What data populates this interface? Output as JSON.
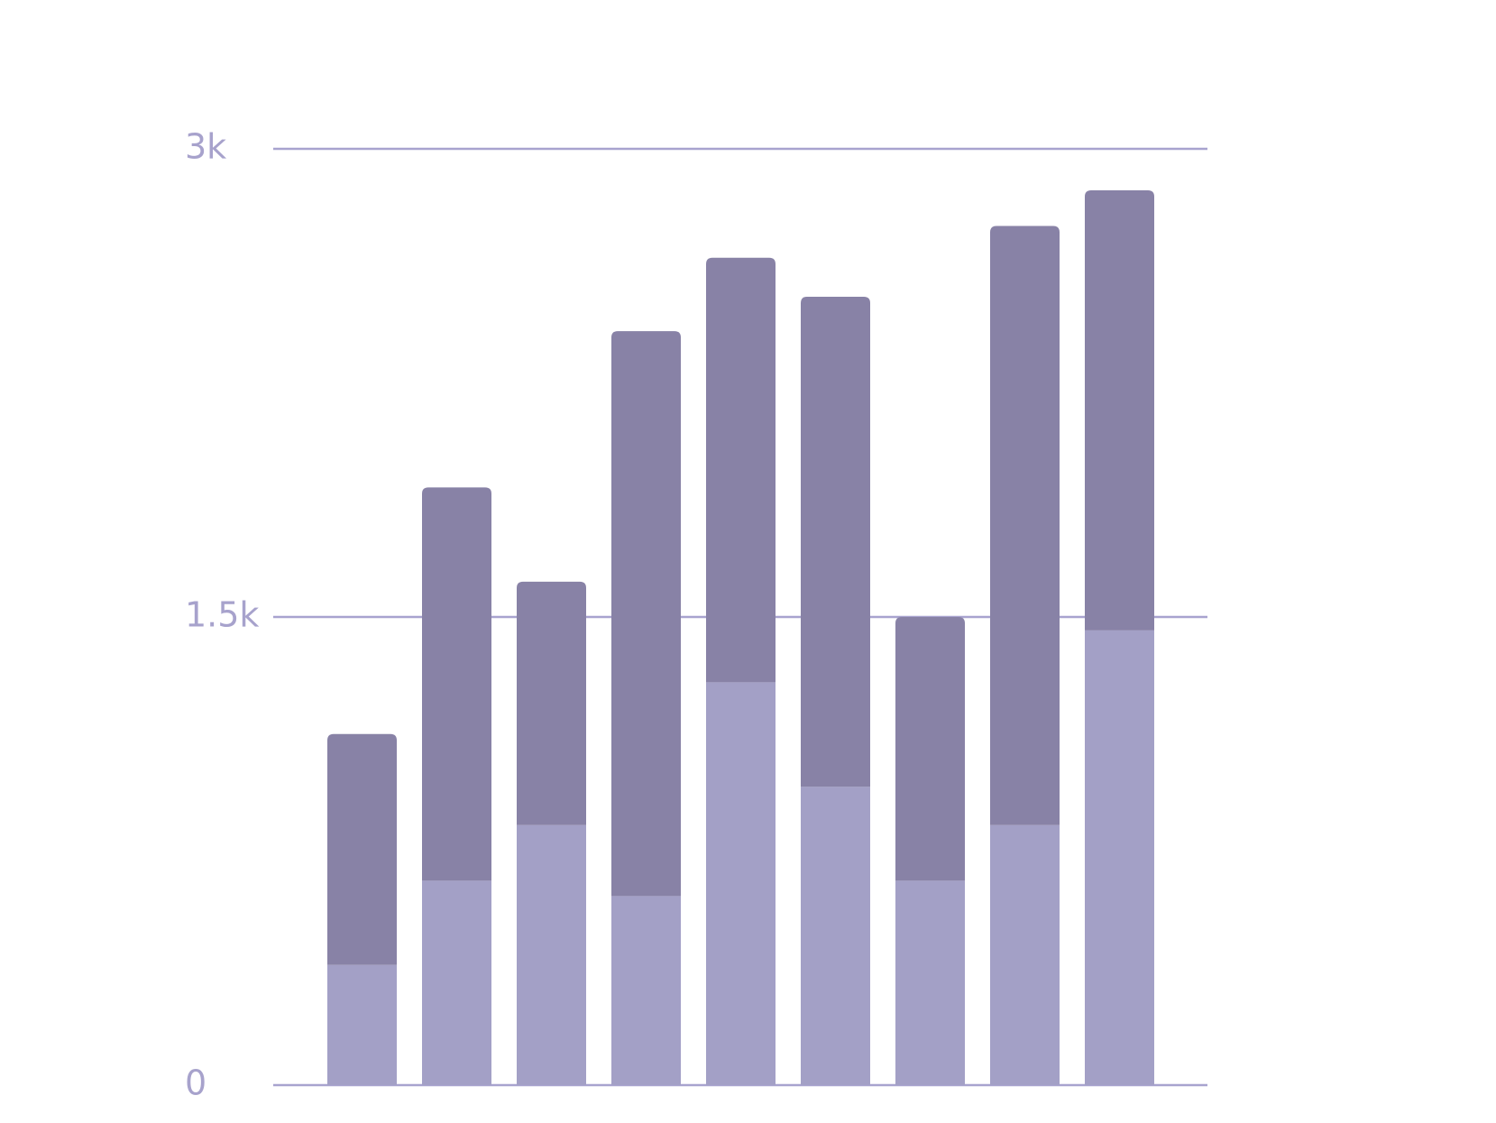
{
  "chart_data": {
    "type": "stacked_bar",
    "categories": [
      null,
      null,
      null,
      null,
      null,
      null,
      null,
      null,
      null
    ],
    "series": [
      {
        "color": "#a3a0c6",
        "values": [
          385,
          655,
          833,
          606,
          1291,
          956,
          655,
          833,
          1457
        ]
      },
      {
        "color": "#8882a6",
        "values": [
          740,
          1260,
          780,
          1810,
          1360,
          1570,
          845,
          1920,
          1410
        ]
      }
    ],
    "ylim": [
      0,
      3000
    ],
    "yticks": [
      0,
      {
        "value": 1500,
        "label": "1.5k"
      },
      {
        "value": 3000,
        "label": "3k"
      }
    ],
    "grid": true
  }
}
